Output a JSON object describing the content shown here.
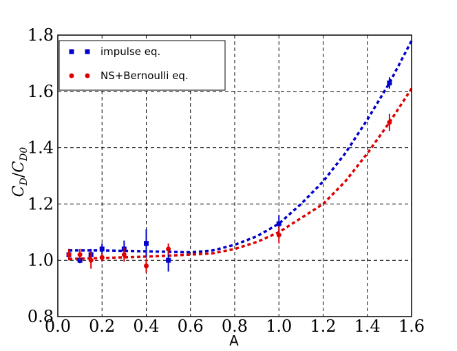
{
  "chart_data": {
    "type": "scatter",
    "xlabel": "A",
    "ylabel_main": "C",
    "ylabel_sub_1": "D",
    "ylabel_sep": "/",
    "ylabel_sub_2": "D0",
    "xlim": [
      0.0,
      1.6
    ],
    "ylim": [
      0.8,
      1.8
    ],
    "xticks": [
      0.0,
      0.2,
      0.4,
      0.6,
      0.8,
      1.0,
      1.2,
      1.4,
      1.6
    ],
    "yticks": [
      0.8,
      1.0,
      1.2,
      1.4,
      1.6,
      1.8
    ],
    "xtick_labels": [
      "0.0",
      "0.2",
      "0.4",
      "0.6",
      "0.8",
      "1.0",
      "1.2",
      "1.4",
      "1.6"
    ],
    "ytick_labels": [
      "0.8",
      "1.0",
      "1.2",
      "1.4",
      "1.6",
      "1.8"
    ],
    "grid": true,
    "legend_position": "top-left",
    "series": [
      {
        "name": "impulse eq.",
        "color": "#0000cc",
        "marker": "square",
        "x": [
          0.05,
          0.1,
          0.15,
          0.2,
          0.3,
          0.4,
          0.5,
          1.0,
          1.5
        ],
        "y": [
          1.02,
          1.0,
          1.02,
          1.04,
          1.04,
          1.06,
          1.0,
          1.13,
          1.63
        ],
        "err": [
          0.02,
          0.01,
          0.02,
          0.02,
          0.03,
          0.05,
          0.04,
          0.03,
          0.02
        ],
        "fit": [
          [
            0.05,
            1.035
          ],
          [
            0.2,
            1.035
          ],
          [
            0.4,
            1.032
          ],
          [
            0.6,
            1.028
          ],
          [
            0.7,
            1.035
          ],
          [
            0.8,
            1.055
          ],
          [
            0.9,
            1.085
          ],
          [
            1.0,
            1.13
          ],
          [
            1.1,
            1.2
          ],
          [
            1.2,
            1.28
          ],
          [
            1.3,
            1.38
          ],
          [
            1.4,
            1.5
          ],
          [
            1.5,
            1.63
          ],
          [
            1.6,
            1.78
          ]
        ]
      },
      {
        "name": "NS+Bernoulli eq.",
        "color": "#dd0000",
        "marker": "circle",
        "x": [
          0.05,
          0.1,
          0.15,
          0.2,
          0.3,
          0.4,
          0.5,
          1.0,
          1.5
        ],
        "y": [
          1.02,
          1.02,
          1.0,
          1.01,
          1.02,
          0.98,
          1.04,
          1.09,
          1.49
        ],
        "err": [
          0.02,
          0.02,
          0.03,
          0.015,
          0.025,
          0.025,
          0.02,
          0.03,
          0.03
        ],
        "fit": [
          [
            0.05,
            1.005
          ],
          [
            0.2,
            1.008
          ],
          [
            0.4,
            1.013
          ],
          [
            0.6,
            1.02
          ],
          [
            0.7,
            1.025
          ],
          [
            0.8,
            1.04
          ],
          [
            0.9,
            1.065
          ],
          [
            1.0,
            1.1
          ],
          [
            1.1,
            1.15
          ],
          [
            1.2,
            1.2
          ],
          [
            1.3,
            1.28
          ],
          [
            1.4,
            1.38
          ],
          [
            1.5,
            1.49
          ],
          [
            1.6,
            1.61
          ]
        ]
      }
    ]
  }
}
